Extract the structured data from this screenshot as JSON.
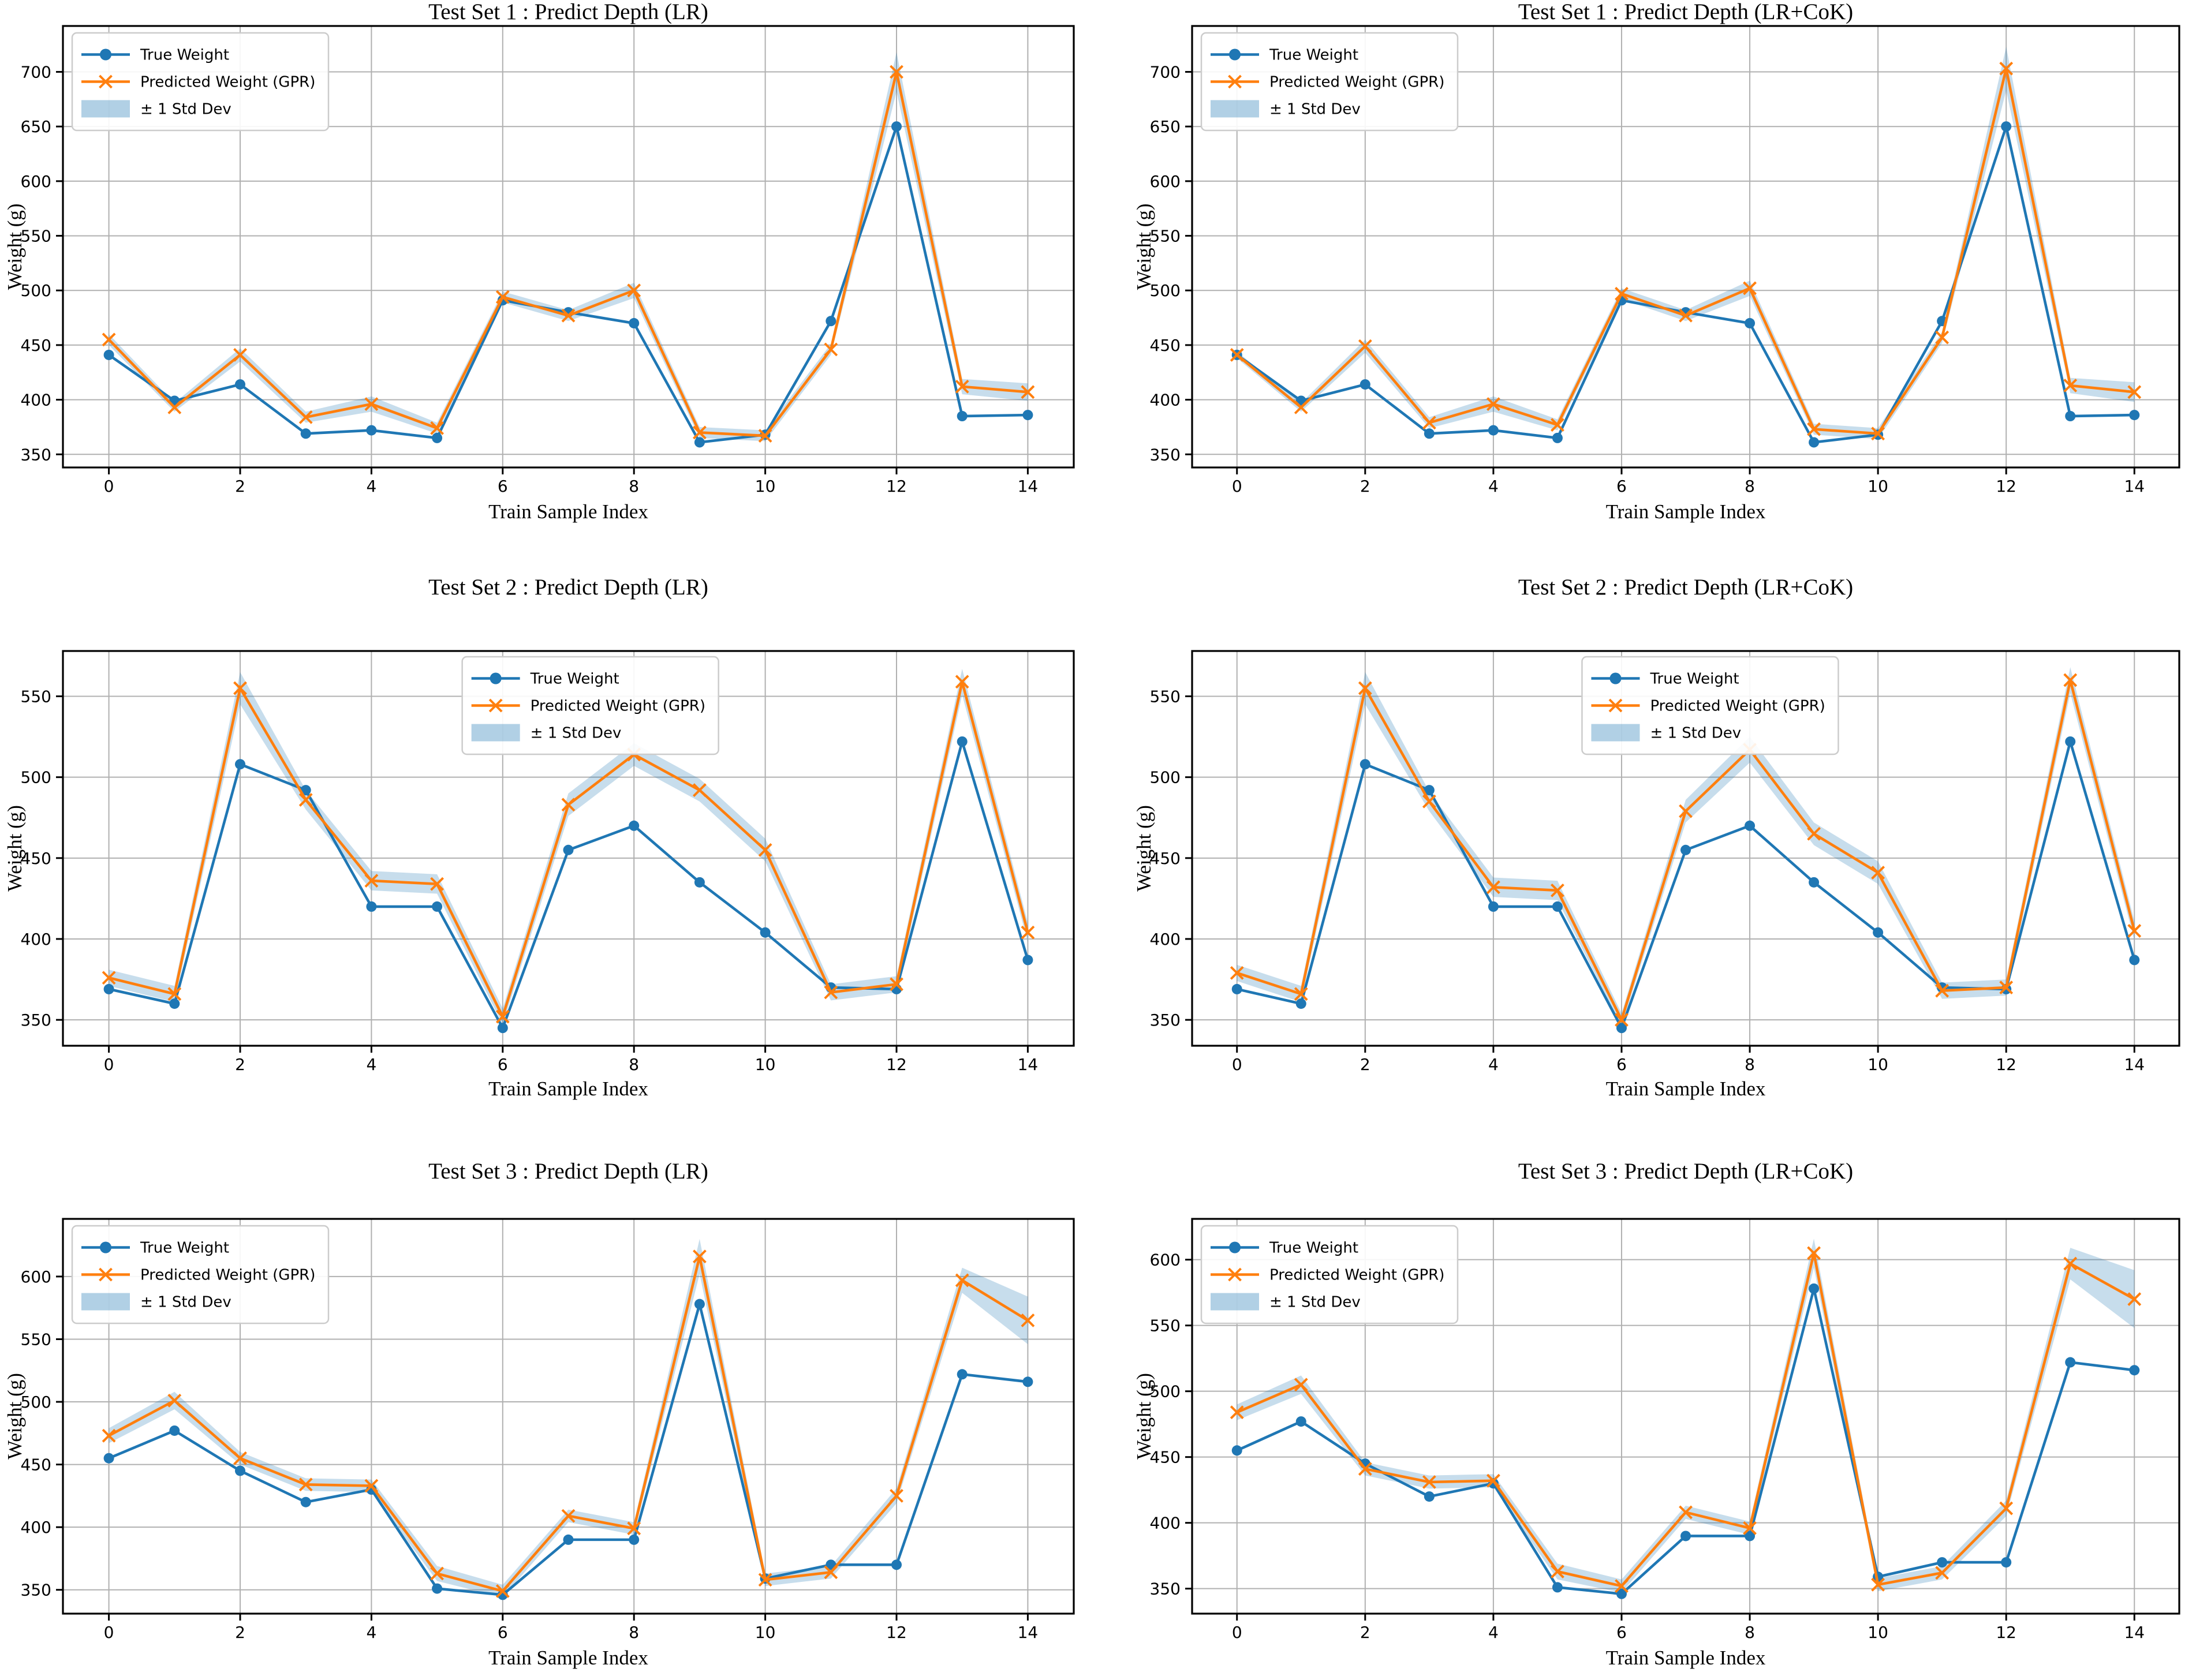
{
  "figure_title": "",
  "axis_font_color": "#000000",
  "colors": {
    "true_series": "#1f77b4",
    "predicted_series": "#ff7f0e",
    "band_fill": "#1f77b4",
    "band_opacity": 0.25,
    "grid": "#b0b0b0",
    "spine": "#000000",
    "legend_border": "#cccccc",
    "legend_bg": "#ffffff"
  },
  "legend_entries": [
    "True Weight",
    "Predicted Weight (GPR)",
    "± 1 Std Dev"
  ],
  "chart_data": [
    {
      "type": "line",
      "id": "test-set-1-lr",
      "title": "Test Set 1 : Predict Depth (LR)",
      "xlabel": "Train Sample Index",
      "ylabel": "Weight (g)",
      "row": 0,
      "col": 0,
      "legend_loc": "upper-left",
      "grid": true,
      "x": [
        0,
        1,
        2,
        3,
        4,
        5,
        6,
        7,
        8,
        9,
        10,
        11,
        12,
        13,
        14
      ],
      "xticks": [
        0,
        2,
        4,
        6,
        8,
        10,
        12,
        14
      ],
      "yticks": [
        350,
        400,
        450,
        500,
        550,
        600,
        650,
        700
      ],
      "xlim": [
        -0.7,
        14.7
      ],
      "ylim": [
        338,
        742
      ],
      "series": [
        {
          "name": "True Weight",
          "marker": "circle",
          "values": [
            441,
            399,
            414,
            369,
            372,
            365,
            491,
            480,
            470,
            361,
            368,
            472,
            650,
            385,
            386
          ]
        },
        {
          "name": "Predicted Weight (GPR)",
          "marker": "x",
          "values": [
            455,
            393,
            441,
            384,
            396,
            374,
            494,
            477,
            500,
            370,
            367,
            446,
            700,
            412,
            407
          ]
        },
        {
          "name": "± 1 Std Dev",
          "type": "band",
          "std": [
            5,
            4,
            6,
            5,
            7,
            5,
            5,
            5,
            7,
            5,
            5,
            5,
            18,
            7,
            8
          ]
        }
      ]
    },
    {
      "type": "line",
      "id": "test-set-1-lr-cok",
      "title": "Test Set 1 : Predict Depth (LR+CoK)",
      "xlabel": "Train Sample Index",
      "ylabel": "Weight (g)",
      "row": 0,
      "col": 1,
      "legend_loc": "upper-left",
      "grid": true,
      "x": [
        0,
        1,
        2,
        3,
        4,
        5,
        6,
        7,
        8,
        9,
        10,
        11,
        12,
        13,
        14
      ],
      "xticks": [
        0,
        2,
        4,
        6,
        8,
        10,
        12,
        14
      ],
      "yticks": [
        350,
        400,
        450,
        500,
        550,
        600,
        650,
        700
      ],
      "xlim": [
        -0.7,
        14.7
      ],
      "ylim": [
        338,
        742
      ],
      "series": [
        {
          "name": "True Weight",
          "marker": "circle",
          "values": [
            441,
            399,
            414,
            369,
            372,
            365,
            491,
            480,
            470,
            361,
            368,
            472,
            650,
            385,
            386
          ]
        },
        {
          "name": "Predicted Weight (GPR)",
          "marker": "x",
          "values": [
            441,
            393,
            449,
            379,
            396,
            377,
            497,
            477,
            502,
            373,
            369,
            457,
            703,
            413,
            407
          ]
        },
        {
          "name": "± 1 Std Dev",
          "type": "band",
          "std": [
            3,
            4,
            6,
            5,
            7,
            5,
            5,
            5,
            7,
            5,
            5,
            5,
            20,
            7,
            9
          ]
        }
      ]
    },
    {
      "type": "line",
      "id": "test-set-2-lr",
      "title": "Test Set 2 : Predict Depth (LR)",
      "xlabel": "Train Sample Index",
      "ylabel": "Weight (g)",
      "row": 1,
      "col": 0,
      "legend_loc": "upper-center",
      "grid": true,
      "x": [
        0,
        1,
        2,
        3,
        4,
        5,
        6,
        7,
        8,
        9,
        10,
        11,
        12,
        13,
        14
      ],
      "xticks": [
        0,
        2,
        4,
        6,
        8,
        10,
        12,
        14
      ],
      "yticks": [
        350,
        400,
        450,
        500,
        550
      ],
      "xlim": [
        -0.7,
        14.7
      ],
      "ylim": [
        334,
        578
      ],
      "series": [
        {
          "name": "True Weight",
          "marker": "circle",
          "values": [
            369,
            360,
            508,
            492,
            420,
            420,
            345,
            455,
            470,
            435,
            404,
            370,
            369,
            522,
            387
          ]
        },
        {
          "name": "Predicted Weight (GPR)",
          "marker": "x",
          "values": [
            376,
            366,
            555,
            486,
            436,
            434,
            352,
            483,
            514,
            492,
            455,
            367,
            372,
            559,
            404
          ]
        },
        {
          "name": "± 1 Std Dev",
          "type": "band",
          "std": [
            5,
            5,
            10,
            6,
            6,
            6,
            5,
            7,
            7,
            7,
            7,
            5,
            5,
            8,
            6
          ]
        }
      ]
    },
    {
      "type": "line",
      "id": "test-set-2-lr-cok",
      "title": "Test Set 2 : Predict Depth (LR+CoK)",
      "xlabel": "Train Sample Index",
      "ylabel": "Weight (g)",
      "row": 1,
      "col": 1,
      "legend_loc": "upper-center",
      "grid": true,
      "x": [
        0,
        1,
        2,
        3,
        4,
        5,
        6,
        7,
        8,
        9,
        10,
        11,
        12,
        13,
        14
      ],
      "xticks": [
        0,
        2,
        4,
        6,
        8,
        10,
        12,
        14
      ],
      "yticks": [
        350,
        400,
        450,
        500,
        550
      ],
      "xlim": [
        -0.7,
        14.7
      ],
      "ylim": [
        334,
        578
      ],
      "series": [
        {
          "name": "True Weight",
          "marker": "circle",
          "values": [
            369,
            360,
            508,
            492,
            420,
            420,
            345,
            455,
            470,
            435,
            404,
            370,
            369,
            522,
            387
          ]
        },
        {
          "name": "Predicted Weight (GPR)",
          "marker": "x",
          "values": [
            379,
            366,
            555,
            485,
            432,
            430,
            350,
            479,
            517,
            465,
            441,
            368,
            370,
            560,
            405
          ]
        },
        {
          "name": "± 1 Std Dev",
          "type": "band",
          "std": [
            5,
            5,
            10,
            6,
            6,
            6,
            4,
            7,
            8,
            7,
            7,
            5,
            5,
            8,
            6
          ]
        }
      ]
    },
    {
      "type": "line",
      "id": "test-set-3-lr",
      "title": "Test Set 3 : Predict Depth (LR)",
      "xlabel": "Train Sample Index",
      "ylabel": "Weight (g)",
      "row": 2,
      "col": 0,
      "legend_loc": "upper-left",
      "grid": true,
      "x": [
        0,
        1,
        2,
        3,
        4,
        5,
        6,
        7,
        8,
        9,
        10,
        11,
        12,
        13,
        14
      ],
      "xticks": [
        0,
        2,
        4,
        6,
        8,
        10,
        12,
        14
      ],
      "yticks": [
        350,
        400,
        450,
        500,
        550,
        600
      ],
      "xlim": [
        -0.7,
        14.7
      ],
      "ylim": [
        331,
        646
      ],
      "series": [
        {
          "name": "True Weight",
          "marker": "circle",
          "values": [
            455,
            477,
            445,
            420,
            430,
            351,
            346,
            390,
            390,
            578,
            359,
            370,
            370,
            522,
            516
          ]
        },
        {
          "name": "Predicted Weight (GPR)",
          "marker": "x",
          "values": [
            473,
            501,
            455,
            434,
            433,
            363,
            349,
            409,
            399,
            616,
            358,
            364,
            425,
            597,
            565
          ]
        },
        {
          "name": "± 1 Std Dev",
          "type": "band",
          "std": [
            6,
            7,
            5,
            5,
            5,
            6,
            5,
            5,
            5,
            14,
            5,
            5,
            6,
            10,
            19
          ]
        }
      ]
    },
    {
      "type": "line",
      "id": "test-set-3-lr-cok",
      "title": "Test Set 3 : Predict Depth (LR+CoK)",
      "xlabel": "Train Sample Index",
      "ylabel": "Weight (g)",
      "row": 2,
      "col": 1,
      "legend_loc": "upper-left",
      "grid": true,
      "x": [
        0,
        1,
        2,
        3,
        4,
        5,
        6,
        7,
        8,
        9,
        10,
        11,
        12,
        13,
        14
      ],
      "xticks": [
        0,
        2,
        4,
        6,
        8,
        10,
        12,
        14
      ],
      "yticks": [
        350,
        400,
        450,
        500,
        550,
        600
      ],
      "xlim": [
        -0.7,
        14.7
      ],
      "ylim": [
        331,
        631
      ],
      "series": [
        {
          "name": "True Weight",
          "marker": "circle",
          "values": [
            455,
            477,
            445,
            420,
            430,
            351,
            346,
            390,
            390,
            578,
            359,
            370,
            370,
            522,
            516
          ]
        },
        {
          "name": "Predicted Weight (GPR)",
          "marker": "x",
          "values": [
            484,
            505,
            441,
            431,
            432,
            363,
            352,
            408,
            396,
            605,
            353,
            362,
            411,
            597,
            570
          ]
        },
        {
          "name": "± 1 Std Dev",
          "type": "band",
          "std": [
            6,
            7,
            5,
            5,
            5,
            6,
            5,
            5,
            5,
            11,
            5,
            5,
            6,
            12,
            22
          ]
        }
      ]
    }
  ]
}
